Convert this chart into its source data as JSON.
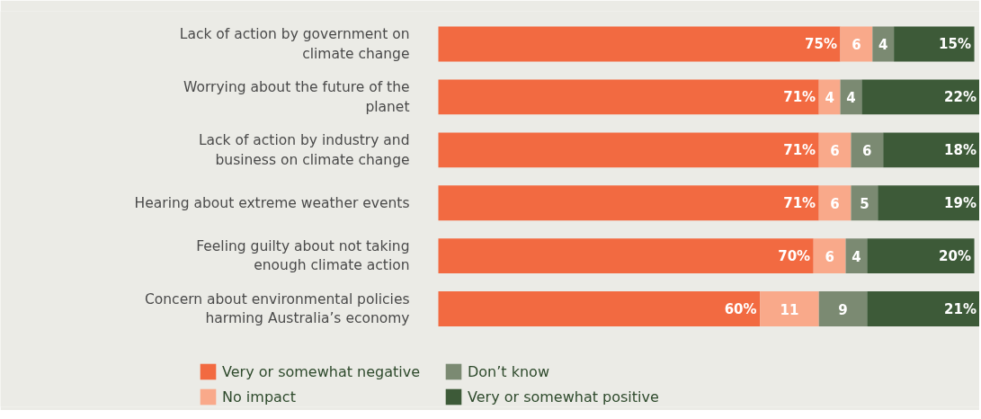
{
  "chart_data": {
    "type": "bar",
    "orientation": "horizontal",
    "stacked": true,
    "xlim": [
      0,
      101
    ],
    "tick_labels": "y",
    "grid": false,
    "legend": "bottom",
    "categories": [
      "Lack of action by government on climate change",
      "Worrying about the future of the planet",
      "Lack of action by industry and business on climate change",
      "Hearing about extreme weather events",
      "Feeling guilty about not taking enough climate action",
      "Concern about environmental policies harming Australia’s economy"
    ],
    "series": [
      {
        "name": "Very or somewhat negative",
        "color": "#f26a41",
        "values": [
          75,
          71,
          71,
          71,
          70,
          60
        ],
        "value_labels": [
          "75%",
          "71%",
          "71%",
          "71%",
          "70%",
          "60%"
        ]
      },
      {
        "name": "No impact",
        "color": "#f9a98a",
        "values": [
          6,
          4,
          6,
          6,
          6,
          11
        ],
        "value_labels": [
          "6",
          "4",
          "6",
          "6",
          "6",
          "11"
        ]
      },
      {
        "name": "Don’t know",
        "color": "#7b8a72",
        "values": [
          4,
          4,
          6,
          5,
          4,
          9
        ],
        "value_labels": [
          "4",
          "4",
          "6",
          "5",
          "4",
          "9"
        ]
      },
      {
        "name": "Very or somewhat positive",
        "color": "#3d5a38",
        "values": [
          15,
          22,
          18,
          19,
          20,
          21
        ],
        "value_labels": [
          "15%",
          "22%",
          "18%",
          "19%",
          "20%",
          "21%"
        ]
      }
    ]
  }
}
